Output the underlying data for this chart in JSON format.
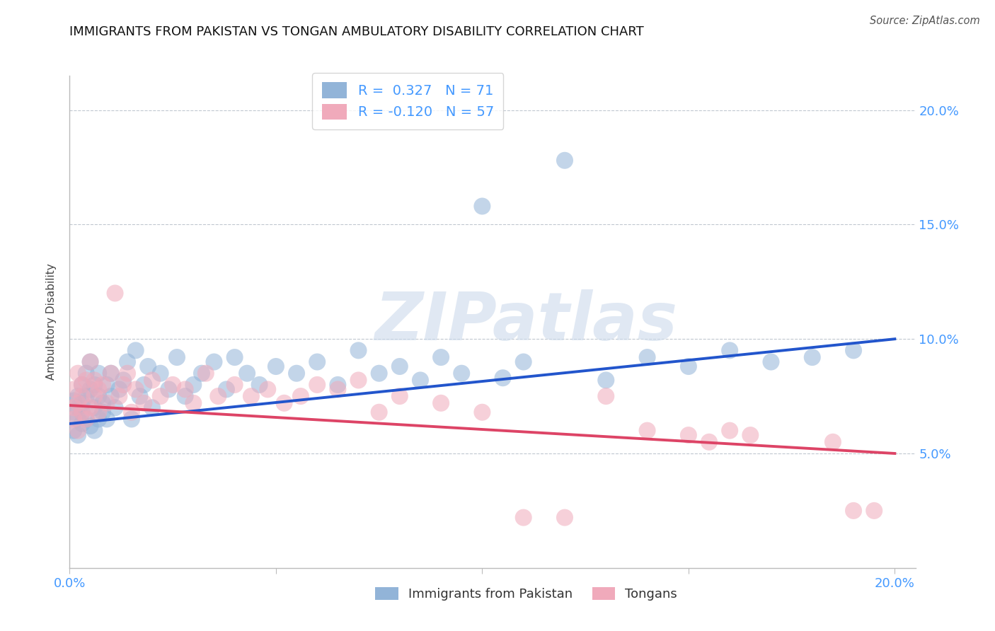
{
  "title": "IMMIGRANTS FROM PAKISTAN VS TONGAN AMBULATORY DISABILITY CORRELATION CHART",
  "source": "Source: ZipAtlas.com",
  "ylabel": "Ambulatory Disability",
  "xlim": [
    0.0,
    0.205
  ],
  "ylim": [
    0.0,
    0.215
  ],
  "blue_R": "0.327",
  "blue_N": "71",
  "pink_R": "-0.120",
  "pink_N": "57",
  "blue_color": "#92b4d8",
  "pink_color": "#f0aabb",
  "blue_line_color": "#2255cc",
  "pink_line_color": "#dd4466",
  "legend_label_blue": "Immigrants from Pakistan",
  "legend_label_pink": "Tongans",
  "watermark": "ZIPatlas",
  "watermark_color": "#ccdaeb",
  "grid_color": "#c0c8d0",
  "axis_label_color": "#4499ff",
  "title_color": "#111111",
  "title_fontsize": 13,
  "source_color": "#555555",
  "ytick_positions": [
    0.05,
    0.1,
    0.15,
    0.2
  ],
  "ytick_labels": [
    "5.0%",
    "10.0%",
    "15.0%",
    "20.0%"
  ],
  "blue_trend_start_y": 0.063,
  "blue_trend_end_y": 0.1,
  "pink_trend_start_y": 0.071,
  "pink_trend_end_y": 0.05,
  "blue_x": [
    0.001,
    0.001,
    0.001,
    0.002,
    0.002,
    0.002,
    0.002,
    0.003,
    0.003,
    0.003,
    0.003,
    0.004,
    0.004,
    0.004,
    0.005,
    0.005,
    0.005,
    0.006,
    0.006,
    0.006,
    0.007,
    0.007,
    0.007,
    0.008,
    0.008,
    0.009,
    0.009,
    0.01,
    0.01,
    0.011,
    0.012,
    0.013,
    0.014,
    0.015,
    0.016,
    0.017,
    0.018,
    0.019,
    0.02,
    0.022,
    0.024,
    0.026,
    0.028,
    0.03,
    0.032,
    0.035,
    0.038,
    0.04,
    0.043,
    0.046,
    0.05,
    0.055,
    0.06,
    0.065,
    0.07,
    0.075,
    0.08,
    0.085,
    0.09,
    0.095,
    0.1,
    0.105,
    0.11,
    0.12,
    0.13,
    0.14,
    0.15,
    0.16,
    0.17,
    0.18,
    0.19
  ],
  "blue_y": [
    0.068,
    0.073,
    0.06,
    0.065,
    0.075,
    0.07,
    0.058,
    0.08,
    0.068,
    0.063,
    0.072,
    0.085,
    0.075,
    0.065,
    0.078,
    0.062,
    0.09,
    0.07,
    0.08,
    0.06,
    0.065,
    0.075,
    0.085,
    0.072,
    0.068,
    0.08,
    0.065,
    0.075,
    0.085,
    0.07,
    0.078,
    0.082,
    0.09,
    0.065,
    0.095,
    0.075,
    0.08,
    0.088,
    0.07,
    0.085,
    0.078,
    0.092,
    0.075,
    0.08,
    0.085,
    0.09,
    0.078,
    0.092,
    0.085,
    0.08,
    0.088,
    0.085,
    0.09,
    0.08,
    0.095,
    0.085,
    0.088,
    0.082,
    0.092,
    0.085,
    0.158,
    0.083,
    0.09,
    0.178,
    0.082,
    0.092,
    0.088,
    0.095,
    0.09,
    0.092,
    0.095
  ],
  "pink_x": [
    0.001,
    0.001,
    0.001,
    0.002,
    0.002,
    0.002,
    0.003,
    0.003,
    0.003,
    0.004,
    0.004,
    0.005,
    0.005,
    0.006,
    0.006,
    0.007,
    0.007,
    0.008,
    0.009,
    0.01,
    0.011,
    0.012,
    0.013,
    0.014,
    0.015,
    0.016,
    0.018,
    0.02,
    0.022,
    0.025,
    0.028,
    0.03,
    0.033,
    0.036,
    0.04,
    0.044,
    0.048,
    0.052,
    0.056,
    0.06,
    0.065,
    0.07,
    0.075,
    0.08,
    0.09,
    0.1,
    0.11,
    0.12,
    0.13,
    0.14,
    0.15,
    0.155,
    0.16,
    0.165,
    0.185,
    0.19,
    0.195
  ],
  "pink_y": [
    0.07,
    0.078,
    0.065,
    0.085,
    0.072,
    0.06,
    0.08,
    0.068,
    0.075,
    0.082,
    0.065,
    0.09,
    0.07,
    0.075,
    0.082,
    0.068,
    0.078,
    0.08,
    0.072,
    0.085,
    0.12,
    0.075,
    0.08,
    0.085,
    0.068,
    0.078,
    0.072,
    0.082,
    0.075,
    0.08,
    0.078,
    0.072,
    0.085,
    0.075,
    0.08,
    0.075,
    0.078,
    0.072,
    0.075,
    0.08,
    0.078,
    0.082,
    0.068,
    0.075,
    0.072,
    0.068,
    0.022,
    0.022,
    0.075,
    0.06,
    0.058,
    0.055,
    0.06,
    0.058,
    0.055,
    0.025,
    0.025
  ]
}
